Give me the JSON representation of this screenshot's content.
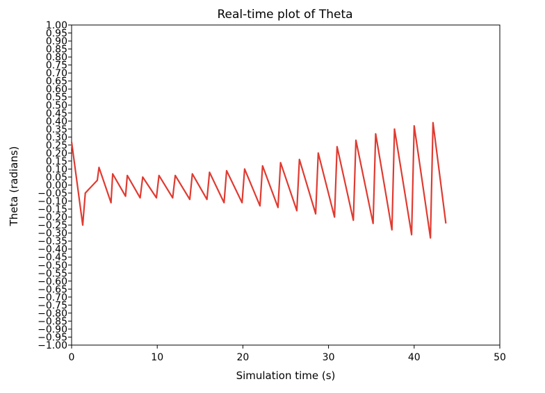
{
  "chart_data": {
    "type": "line",
    "title": "Real-time plot of Theta",
    "xlabel": "Simulation time (s)",
    "ylabel": "Theta (radians)",
    "xlim": [
      0,
      50
    ],
    "ylim": [
      -1.0,
      1.0
    ],
    "xticks": [
      "0",
      "10",
      "20",
      "30",
      "40",
      "50"
    ],
    "yticks": [
      "1.00",
      "0.95",
      "0.90",
      "0.85",
      "0.80",
      "0.75",
      "0.70",
      "0.65",
      "0.60",
      "0.55",
      "0.50",
      "0.45",
      "0.40",
      "0.35",
      "0.30",
      "0.25",
      "0.20",
      "0.15",
      "0.10",
      "0.05",
      "0.00",
      "−0.05",
      "−0.10",
      "−0.15",
      "−0.20",
      "−0.25",
      "−0.30",
      "−0.35",
      "−0.40",
      "−0.45",
      "−0.50",
      "−0.55",
      "−0.60",
      "−0.65",
      "−0.70",
      "−0.75",
      "−0.80",
      "−0.85",
      "−0.90",
      "−0.95",
      "−1.00"
    ],
    "grid": false,
    "color": "#e03a30",
    "series": [
      {
        "x": [
          0,
          1.3,
          1.6,
          3.0,
          3.2,
          4.6,
          4.8,
          6.3,
          6.5,
          8.0,
          8.3,
          9.9,
          10.2,
          11.8,
          12.1,
          13.8,
          14.1,
          15.8,
          16.1,
          17.8,
          18.1,
          19.9,
          20.2,
          22.0,
          22.3,
          24.1,
          24.4,
          26.3,
          26.6,
          28.5,
          28.8,
          30.7,
          31.0,
          32.9,
          33.2,
          35.2,
          35.5,
          37.4,
          37.7,
          39.7,
          40.0,
          41.9,
          42.2,
          43.7
        ],
        "y": [
          0.27,
          -0.25,
          -0.05,
          0.03,
          0.11,
          -0.11,
          0.07,
          -0.07,
          0.06,
          -0.08,
          0.05,
          -0.08,
          0.06,
          -0.08,
          0.06,
          -0.09,
          0.07,
          -0.09,
          0.08,
          -0.11,
          0.09,
          -0.11,
          0.1,
          -0.13,
          0.12,
          -0.14,
          0.14,
          -0.16,
          0.16,
          -0.18,
          0.2,
          -0.2,
          0.24,
          -0.22,
          0.28,
          -0.24,
          0.32,
          -0.28,
          0.35,
          -0.31,
          0.37,
          -0.33,
          0.39,
          -0.24
        ]
      }
    ]
  }
}
